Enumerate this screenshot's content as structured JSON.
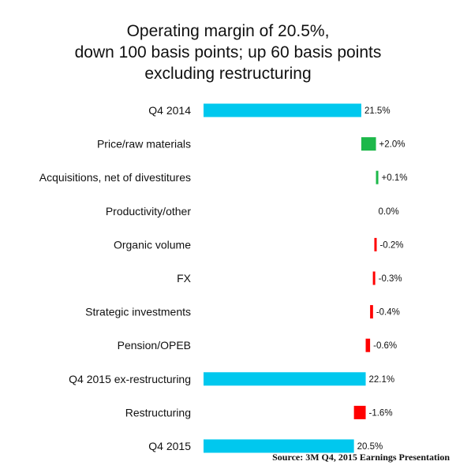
{
  "chart_data": {
    "type": "bar",
    "subtype": "waterfall",
    "title": [
      "Operating margin of 20.5%,",
      "down 100 basis points; up 60 basis points",
      "excluding restructuring"
    ],
    "categories": [
      "Q4 2014",
      "Price/raw materials",
      "Acquisitions, net of divestitures",
      "Productivity/other",
      "Organic volume",
      "FX",
      "Strategic investments",
      "Pension/OPEB",
      "Q4 2015 ex-restructuring",
      "Restructuring",
      "Q4 2015"
    ],
    "values": [
      21.5,
      2.0,
      0.1,
      0.0,
      -0.2,
      -0.3,
      -0.4,
      -0.6,
      22.1,
      -1.6,
      20.5
    ],
    "value_labels": [
      "21.5%",
      "+2.0%",
      "+0.1%",
      "0.0%",
      "-0.2%",
      "-0.3%",
      "-0.4%",
      "-0.6%",
      "22.1%",
      "-1.6%",
      "20.5%"
    ],
    "kinds": [
      "total",
      "delta",
      "delta",
      "delta",
      "delta",
      "delta",
      "delta",
      "delta",
      "total",
      "delta",
      "total"
    ],
    "unit": "%",
    "xlim": [
      0,
      23.6
    ],
    "grid": false,
    "colors": {
      "total": "#00c8ee",
      "increase": "#1db84a",
      "decrease": "#ff0000"
    },
    "source": "Source: 3M Q4, 2015 Earnings Presentation"
  }
}
